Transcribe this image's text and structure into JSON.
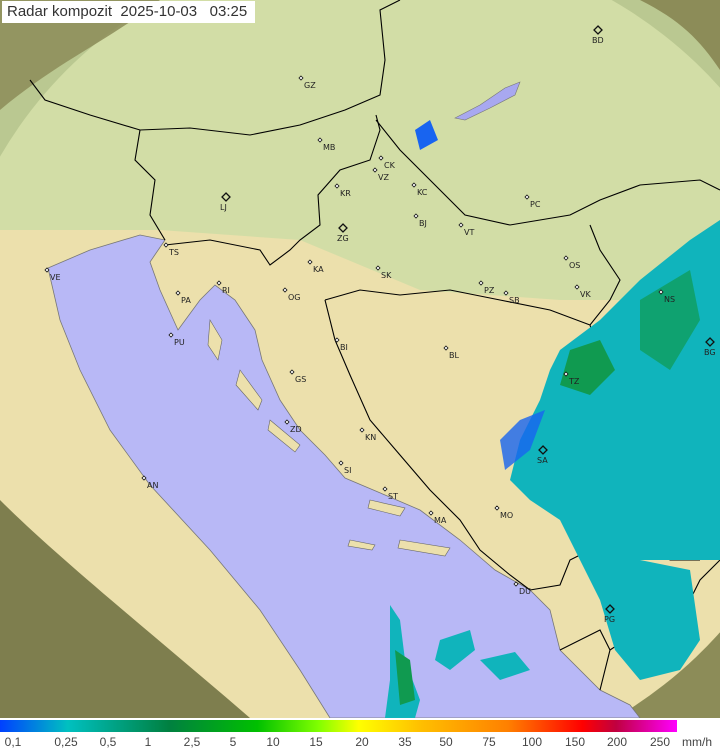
{
  "title": {
    "label": "Radar kompozit",
    "date": "2025-10-03",
    "time": "03:25"
  },
  "legend": {
    "unit": "mm/h",
    "ticks": [
      "0,1",
      "0,25",
      "0,5",
      "1",
      "2,5",
      "5",
      "10",
      "15",
      "20",
      "35",
      "50",
      "75",
      "100",
      "150",
      "200",
      "250"
    ]
  },
  "colors": {
    "sea": "#b8b8f6",
    "land_north": "#c9dca4",
    "land_south": "#ece0ac",
    "out_of_range": "#8c8c58",
    "echo_light": "#10b4bc",
    "echo_blue": "#1864f0",
    "echo_green": "#109a50",
    "border": "#000000"
  },
  "cities": [
    {
      "code": "GZ",
      "major": false
    },
    {
      "code": "BD",
      "major": true
    },
    {
      "code": "MB",
      "major": false
    },
    {
      "code": "CK",
      "major": false
    },
    {
      "code": "VZ",
      "major": false
    },
    {
      "code": "KR",
      "major": false
    },
    {
      "code": "KC",
      "major": false
    },
    {
      "code": "LJ",
      "major": true
    },
    {
      "code": "ZG",
      "major": true
    },
    {
      "code": "BJ",
      "major": false
    },
    {
      "code": "VT",
      "major": false
    },
    {
      "code": "PC",
      "major": false
    },
    {
      "code": "TS",
      "major": false
    },
    {
      "code": "VE",
      "major": false
    },
    {
      "code": "KA",
      "major": false
    },
    {
      "code": "SK",
      "major": false
    },
    {
      "code": "OS",
      "major": false
    },
    {
      "code": "RI",
      "major": false
    },
    {
      "code": "PA",
      "major": false
    },
    {
      "code": "OG",
      "major": false
    },
    {
      "code": "PZ",
      "major": false
    },
    {
      "code": "SB",
      "major": false
    },
    {
      "code": "VK",
      "major": false
    },
    {
      "code": "NS",
      "major": false
    },
    {
      "code": "PU",
      "major": false
    },
    {
      "code": "BI",
      "major": false
    },
    {
      "code": "BL",
      "major": false
    },
    {
      "code": "BG",
      "major": true
    },
    {
      "code": "GS",
      "major": false
    },
    {
      "code": "TZ",
      "major": false
    },
    {
      "code": "ZD",
      "major": false
    },
    {
      "code": "KN",
      "major": false
    },
    {
      "code": "SI",
      "major": false
    },
    {
      "code": "AN",
      "major": false
    },
    {
      "code": "SA",
      "major": true
    },
    {
      "code": "ST",
      "major": false
    },
    {
      "code": "MA",
      "major": false
    },
    {
      "code": "MO",
      "major": false
    },
    {
      "code": "DU",
      "major": false
    },
    {
      "code": "PG",
      "major": true
    }
  ]
}
